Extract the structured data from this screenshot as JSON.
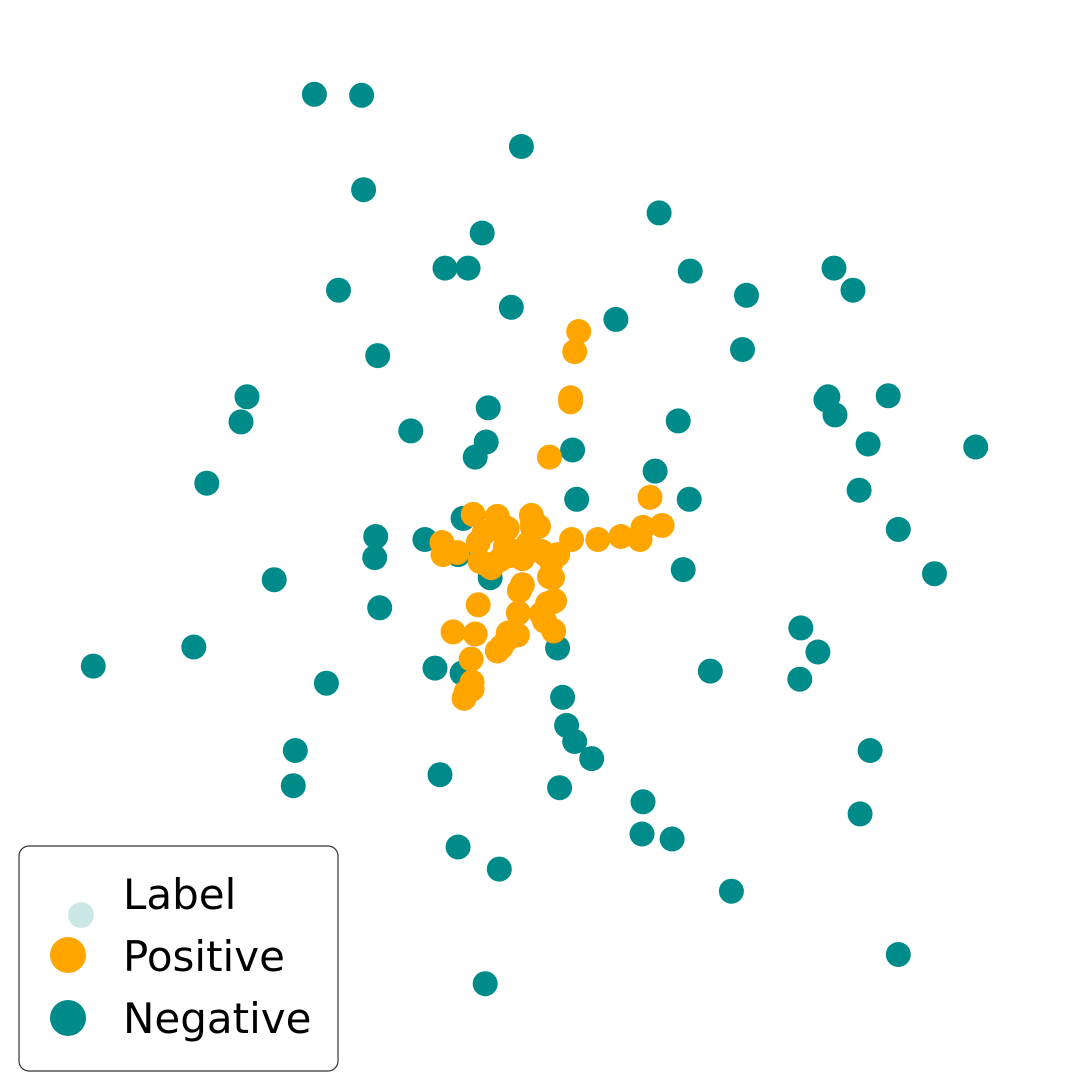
{
  "chart_data": {
    "type": "scatter",
    "title": "",
    "xlabel": "",
    "ylabel": "",
    "xlim": [
      0,
      100
    ],
    "ylim": [
      0,
      100
    ],
    "grid": false,
    "axes_visible": false,
    "legend": {
      "placement": "lower-left",
      "title": "Label",
      "title_marker_color": "#cce8e6",
      "entries": [
        "Positive",
        "Negative"
      ]
    },
    "series": [
      {
        "name": "Positive",
        "color": "#FFA500",
        "points": [
          [
            53.6,
            71.0
          ],
          [
            53.2,
            69.0
          ],
          [
            52.8,
            64.4
          ],
          [
            52.8,
            64.0
          ],
          [
            50.7,
            58.5
          ],
          [
            43.1,
            52.8
          ],
          [
            49.0,
            51.5
          ],
          [
            48.9,
            52.7
          ],
          [
            49.0,
            52.0
          ],
          [
            49.6,
            51.6
          ],
          [
            45.5,
            52.6
          ],
          [
            43.6,
            50.0
          ],
          [
            40.0,
            50.0
          ],
          [
            40.1,
            48.8
          ],
          [
            41.5,
            49.0
          ],
          [
            43.8,
            48.1
          ],
          [
            44.5,
            47.8
          ],
          [
            44.9,
            47.5
          ],
          [
            45.8,
            48.3
          ],
          [
            46.7,
            48.7
          ],
          [
            47.3,
            49.1
          ],
          [
            48.6,
            49.9
          ],
          [
            49.9,
            49.1
          ],
          [
            50.3,
            48.8
          ],
          [
            50.9,
            48.1
          ],
          [
            50.7,
            46.6
          ],
          [
            51.0,
            46.5
          ],
          [
            51.5,
            48.8
          ],
          [
            52.9,
            50.3
          ],
          [
            55.5,
            50.3
          ],
          [
            57.8,
            50.6
          ],
          [
            59.7,
            50.3
          ],
          [
            60.0,
            51.5
          ],
          [
            61.9,
            51.7
          ],
          [
            60.7,
            54.5
          ],
          [
            45.5,
            51.3
          ],
          [
            44.2,
            51.0
          ],
          [
            46.5,
            51.4
          ],
          [
            43.6,
            43.8
          ],
          [
            47.7,
            45.2
          ],
          [
            48.0,
            45.8
          ],
          [
            47.6,
            43.0
          ],
          [
            49.9,
            42.9
          ],
          [
            50.5,
            43.9
          ],
          [
            50.2,
            42.2
          ],
          [
            51.1,
            41.2
          ],
          [
            51.0,
            44.1
          ],
          [
            51.2,
            44.2
          ],
          [
            46.6,
            41.0
          ],
          [
            47.5,
            40.8
          ],
          [
            45.5,
            39.2
          ],
          [
            45.9,
            39.6
          ],
          [
            46.5,
            40.4
          ],
          [
            43.3,
            40.9
          ],
          [
            42.9,
            38.4
          ],
          [
            41.1,
            41.1
          ],
          [
            43.0,
            36.1
          ],
          [
            43.0,
            35.4
          ],
          [
            42.4,
            35.1
          ],
          [
            42.2,
            34.5
          ],
          [
            49.1,
            51.6
          ],
          [
            47.9,
            48.7
          ],
          [
            48.0,
            48.4
          ],
          [
            46.3,
            49.5
          ]
        ]
      },
      {
        "name": "Negative",
        "color": "#008b8b",
        "points": [
          [
            27.3,
            94.6
          ],
          [
            32.0,
            94.5
          ],
          [
            47.9,
            89.4
          ],
          [
            32.2,
            85.1
          ],
          [
            61.6,
            82.8
          ],
          [
            44.0,
            80.8
          ],
          [
            40.3,
            77.3
          ],
          [
            42.6,
            77.3
          ],
          [
            64.7,
            77.0
          ],
          [
            29.7,
            75.1
          ],
          [
            46.9,
            73.4
          ],
          [
            57.3,
            72.2
          ],
          [
            70.3,
            74.6
          ],
          [
            79.0,
            77.3
          ],
          [
            80.9,
            75.1
          ],
          [
            69.9,
            69.2
          ],
          [
            33.6,
            68.6
          ],
          [
            20.6,
            64.5
          ],
          [
            20.0,
            62.0
          ],
          [
            44.6,
            63.4
          ],
          [
            36.9,
            61.1
          ],
          [
            44.4,
            60.0
          ],
          [
            43.3,
            58.5
          ],
          [
            53.0,
            59.2
          ],
          [
            63.5,
            62.1
          ],
          [
            78.2,
            64.2
          ],
          [
            78.4,
            64.5
          ],
          [
            79.1,
            62.7
          ],
          [
            84.4,
            64.6
          ],
          [
            82.4,
            59.8
          ],
          [
            93.1,
            59.5
          ],
          [
            16.6,
            55.9
          ],
          [
            61.2,
            57.1
          ],
          [
            53.4,
            54.3
          ],
          [
            64.6,
            54.3
          ],
          [
            81.5,
            55.2
          ],
          [
            85.4,
            51.3
          ],
          [
            42.1,
            52.4
          ],
          [
            33.4,
            50.6
          ],
          [
            38.3,
            50.3
          ],
          [
            33.3,
            48.5
          ],
          [
            23.3,
            46.3
          ],
          [
            41.6,
            48.8
          ],
          [
            64.0,
            47.3
          ],
          [
            89.0,
            46.9
          ],
          [
            33.8,
            43.5
          ],
          [
            44.8,
            46.5
          ],
          [
            15.3,
            39.6
          ],
          [
            5.3,
            37.7
          ],
          [
            51.5,
            39.5
          ],
          [
            28.5,
            36.0
          ],
          [
            39.3,
            37.5
          ],
          [
            42.0,
            37.0
          ],
          [
            66.7,
            37.2
          ],
          [
            75.7,
            41.5
          ],
          [
            77.4,
            39.1
          ],
          [
            75.6,
            36.4
          ],
          [
            52.0,
            34.6
          ],
          [
            52.4,
            31.8
          ],
          [
            53.2,
            30.2
          ],
          [
            54.9,
            28.5
          ],
          [
            25.4,
            29.3
          ],
          [
            25.2,
            25.8
          ],
          [
            39.8,
            26.9
          ],
          [
            51.7,
            25.6
          ],
          [
            60.0,
            24.2
          ],
          [
            82.6,
            29.3
          ],
          [
            81.6,
            23.0
          ],
          [
            59.9,
            21.0
          ],
          [
            62.9,
            20.5
          ],
          [
            41.6,
            19.7
          ],
          [
            45.7,
            17.5
          ],
          [
            68.8,
            15.3
          ],
          [
            85.4,
            9.0
          ],
          [
            44.3,
            6.1
          ]
        ]
      }
    ]
  }
}
